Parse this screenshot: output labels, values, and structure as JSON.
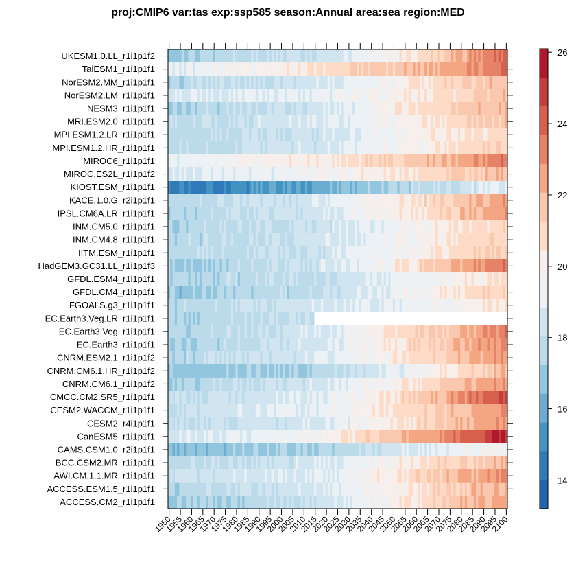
{
  "chart_data": {
    "type": "heatmap",
    "title": "proj:CMIP6 var:tas exp:ssp585 season:Annual area:sea region:MED",
    "xlabel": "",
    "ylabel": "",
    "xlim": [
      1950,
      2100
    ],
    "x_ticks": [
      1950,
      1955,
      1960,
      1965,
      1970,
      1975,
      1980,
      1985,
      1990,
      1995,
      2000,
      2005,
      2010,
      2015,
      2020,
      2025,
      2030,
      2035,
      2040,
      2045,
      2050,
      2055,
      2060,
      2065,
      2070,
      2075,
      2080,
      2085,
      2090,
      2095,
      2100
    ],
    "colorbar": {
      "range": [
        13.2,
        26.1
      ],
      "ticks": [
        14,
        16,
        18,
        20,
        22,
        24,
        26
      ],
      "colors": [
        "#2166AC",
        "#3179B8",
        "#4393C3",
        "#6BACD0",
        "#92C5DE",
        "#BBDAEA",
        "#D1E5F0",
        "#EBF1F5",
        "#F7EFEB",
        "#FDDBC7",
        "#FAC8AE",
        "#F4A582",
        "#E58267",
        "#D6604D",
        "#C53E3F",
        "#B2182B"
      ],
      "placement": "right"
    },
    "x": [
      1950,
      2015,
      2050,
      2080,
      2100
    ],
    "series": [
      {
        "name": "UKESM1.0.LL_r1i1p1f2",
        "values": [
          17.0,
          18.3,
          19.8,
          22.3,
          24.2
        ]
      },
      {
        "name": "TaiESM1_r1i1p1f1",
        "values": [
          19.0,
          20.6,
          21.6,
          22.6,
          24.0
        ]
      },
      {
        "name": "NorESM2.MM_r1i1p1f1",
        "values": [
          17.5,
          18.5,
          19.9,
          21.3,
          21.8
        ]
      },
      {
        "name": "NorESM2.LM_r1i1p1f1",
        "values": [
          18.6,
          19.1,
          19.9,
          21.0,
          21.8
        ]
      },
      {
        "name": "NESM3_r1i1p1f1",
        "values": [
          17.3,
          18.4,
          20.1,
          21.5,
          22.0
        ]
      },
      {
        "name": "MRI.ESM2.0_r1i1p1f1",
        "values": [
          17.8,
          18.7,
          19.8,
          21.0,
          21.8
        ]
      },
      {
        "name": "MPI.ESM1.2.LR_r1i1p1f1",
        "values": [
          17.5,
          18.3,
          19.6,
          20.5,
          21.0
        ]
      },
      {
        "name": "MPI.ESM1.2.HR_r1i1p1f1",
        "values": [
          17.6,
          18.5,
          19.6,
          20.6,
          21.3
        ]
      },
      {
        "name": "MIROC6_r1i1p1f1",
        "values": [
          19.2,
          20.2,
          21.3,
          22.3,
          23.6
        ]
      },
      {
        "name": "MIROC.ES2L_r1i1p1f2",
        "values": [
          18.8,
          19.5,
          20.4,
          21.3,
          22.0
        ]
      },
      {
        "name": "KIOST.ESM_r1i1p1f1",
        "values": [
          14.5,
          15.8,
          17.4,
          18.3,
          18.7
        ]
      },
      {
        "name": "KACE.1.0.G_r2i1p1f1",
        "values": [
          17.5,
          18.6,
          20.1,
          21.6,
          22.8
        ]
      },
      {
        "name": "IPSL.CM6A.LR_r1i1p1f1",
        "values": [
          17.5,
          18.4,
          20.0,
          21.6,
          23.0
        ]
      },
      {
        "name": "INM.CM5.0_r1i1p1f1",
        "values": [
          17.5,
          18.2,
          19.4,
          20.5,
          21.0
        ]
      },
      {
        "name": "INM.CM4.8_r1i1p1f1",
        "values": [
          17.5,
          18.2,
          19.6,
          20.6,
          21.3
        ]
      },
      {
        "name": "IITM.ESM_r1i1p1f1",
        "values": [
          17.5,
          18.2,
          19.6,
          20.8,
          21.5
        ]
      },
      {
        "name": "HadGEM3.GC31.LL_r1i1p1f3",
        "values": [
          17.0,
          18.3,
          20.1,
          22.1,
          23.8
        ]
      },
      {
        "name": "GFDL.ESM4_r1i1p1f1",
        "values": [
          17.3,
          18.0,
          19.0,
          20.0,
          20.8
        ]
      },
      {
        "name": "GFDL.CM4_r1i1p1f1",
        "values": [
          16.8,
          17.8,
          19.3,
          20.6,
          21.5
        ]
      },
      {
        "name": "FGOALS.g3_r1i1p1f1",
        "values": [
          17.5,
          18.5,
          19.2,
          19.9,
          20.8
        ]
      },
      {
        "name": "EC.Earth3.Veg.LR_r1i1p1f1",
        "values": [
          17.4,
          18.0,
          null,
          null,
          null
        ]
      },
      {
        "name": "EC.Earth3.Veg_r1i1p1f1",
        "values": [
          17.3,
          18.6,
          20.5,
          22.0,
          23.5
        ]
      },
      {
        "name": "EC.Earth3_r1i1p1f1",
        "values": [
          17.2,
          18.5,
          20.5,
          22.0,
          23.3
        ]
      },
      {
        "name": "CNRM.ESM2.1_r1i1p1f2",
        "values": [
          17.5,
          18.6,
          20.3,
          21.8,
          23.0
        ]
      },
      {
        "name": "CNRM.CM6.1.HR_r1i1p1f2",
        "values": [
          16.8,
          17.5,
          18.9,
          20.8,
          22.0
        ]
      },
      {
        "name": "CNRM.CM6.1_r1i1p1f2",
        "values": [
          17.3,
          18.5,
          20.0,
          21.8,
          22.8
        ]
      },
      {
        "name": "CMCC.CM2.SR5_r1i1p1f1",
        "values": [
          17.8,
          18.8,
          20.5,
          23.0,
          24.6
        ]
      },
      {
        "name": "CESM2.WACCM_r1i1p1f1",
        "values": [
          18.2,
          19.0,
          20.6,
          22.0,
          23.0
        ]
      },
      {
        "name": "CESM2_r4i1p1f1",
        "values": [
          17.8,
          18.6,
          20.2,
          22.0,
          23.0
        ]
      },
      {
        "name": "CanESM5_r1i1p1f1",
        "values": [
          18.5,
          19.6,
          21.6,
          23.6,
          25.6
        ]
      },
      {
        "name": "CAMS.CSM1.0_r2i1p1f1",
        "values": [
          16.6,
          17.2,
          18.3,
          19.5,
          20.0
        ]
      },
      {
        "name": "BCC.CSM2.MR_r1i1p1f1",
        "values": [
          17.5,
          18.6,
          20.0,
          21.2,
          22.0
        ]
      },
      {
        "name": "AWI.CM.1.1.MR_r1i1p1f1",
        "values": [
          18.2,
          18.8,
          20.3,
          22.0,
          23.0
        ]
      },
      {
        "name": "ACCESS.ESM1.5_r1i1p1f1",
        "values": [
          17.5,
          18.5,
          20.0,
          21.5,
          22.3
        ]
      },
      {
        "name": "ACCESS.CM2_r1i1p1f1",
        "values": [
          17.0,
          18.2,
          20.0,
          21.8,
          22.5
        ]
      }
    ]
  }
}
